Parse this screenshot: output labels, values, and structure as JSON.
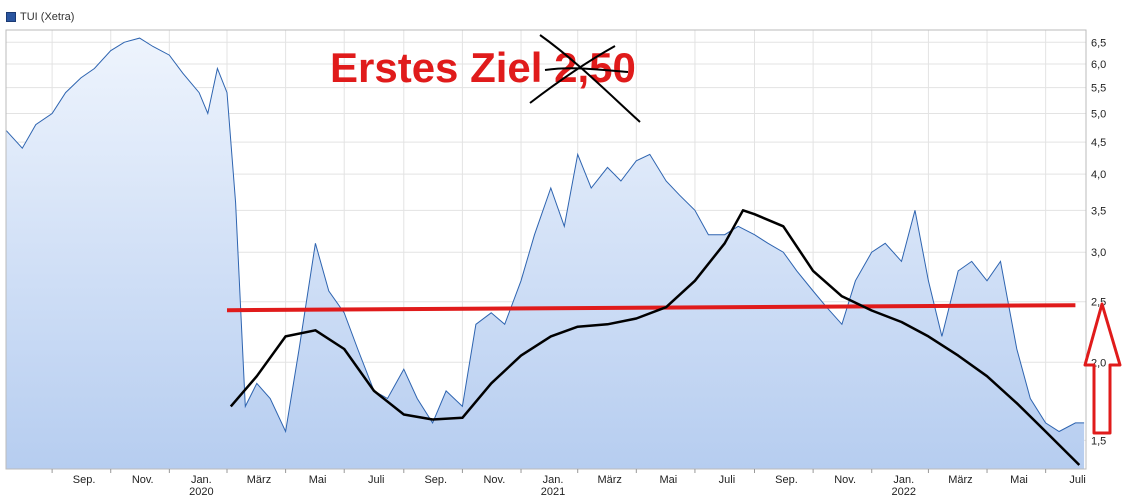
{
  "chart_data": {
    "type": "area",
    "title": "",
    "legend": "TUI (Xetra)",
    "xlabel": "",
    "ylabel": "",
    "y_scale": "log",
    "ylim": [
      1.35,
      6.8
    ],
    "y_ticks": [
      1.5,
      2.0,
      2.5,
      3.0,
      3.5,
      4.0,
      4.5,
      5.0,
      5.5,
      6.0,
      6.5
    ],
    "y_tick_labels": [
      "1,5",
      "2,0",
      "2,5",
      "3,0",
      "3,5",
      "4,0",
      "4,5",
      "5,0",
      "5,5",
      "6,0",
      "6,5"
    ],
    "x_ticks": [
      {
        "date": "2019-09-01",
        "label": "Sep.",
        "year": ""
      },
      {
        "date": "2019-11-01",
        "label": "Nov.",
        "year": ""
      },
      {
        "date": "2020-01-01",
        "label": "Jan.",
        "year": "2020"
      },
      {
        "date": "2020-03-01",
        "label": "März",
        "year": ""
      },
      {
        "date": "2020-05-01",
        "label": "Mai",
        "year": ""
      },
      {
        "date": "2020-07-01",
        "label": "Juli",
        "year": ""
      },
      {
        "date": "2020-09-01",
        "label": "Sep.",
        "year": ""
      },
      {
        "date": "2020-11-01",
        "label": "Nov.",
        "year": ""
      },
      {
        "date": "2021-01-01",
        "label": "Jan.",
        "year": "2021"
      },
      {
        "date": "2021-03-01",
        "label": "März",
        "year": ""
      },
      {
        "date": "2021-05-01",
        "label": "Mai",
        "year": ""
      },
      {
        "date": "2021-07-01",
        "label": "Juli",
        "year": ""
      },
      {
        "date": "2021-09-01",
        "label": "Sep.",
        "year": ""
      },
      {
        "date": "2021-11-01",
        "label": "Nov.",
        "year": ""
      },
      {
        "date": "2022-01-01",
        "label": "Jan.",
        "year": "2022"
      },
      {
        "date": "2022-03-01",
        "label": "März",
        "year": ""
      },
      {
        "date": "2022-05-01",
        "label": "Mai",
        "year": ""
      },
      {
        "date": "2022-07-01",
        "label": "Juli",
        "year": ""
      }
    ],
    "grid": true,
    "series": [
      {
        "name": "TUI (Xetra)",
        "color": "#2e64b0",
        "fill_top": "#eef4fd",
        "fill_bottom": "#b6cdf0",
        "x": [
          "2019-07-15",
          "2019-08-01",
          "2019-08-15",
          "2019-09-01",
          "2019-09-15",
          "2019-10-01",
          "2019-10-15",
          "2019-11-01",
          "2019-11-15",
          "2019-12-01",
          "2019-12-15",
          "2020-01-01",
          "2020-01-15",
          "2020-02-01",
          "2020-02-10",
          "2020-02-20",
          "2020-03-01",
          "2020-03-10",
          "2020-03-20",
          "2020-04-01",
          "2020-04-15",
          "2020-05-01",
          "2020-05-15",
          "2020-06-01",
          "2020-06-15",
          "2020-07-01",
          "2020-07-15",
          "2020-08-01",
          "2020-08-15",
          "2020-09-01",
          "2020-09-15",
          "2020-10-01",
          "2020-10-15",
          "2020-11-01",
          "2020-11-15",
          "2020-12-01",
          "2020-12-15",
          "2021-01-01",
          "2021-01-15",
          "2021-02-01",
          "2021-02-15",
          "2021-03-01",
          "2021-03-15",
          "2021-04-01",
          "2021-04-15",
          "2021-05-01",
          "2021-05-15",
          "2021-06-01",
          "2021-06-15",
          "2021-07-01",
          "2021-07-15",
          "2021-08-01",
          "2021-08-15",
          "2021-09-01",
          "2021-09-15",
          "2021-10-01",
          "2021-10-15",
          "2021-11-01",
          "2021-11-15",
          "2021-12-01",
          "2021-12-15",
          "2022-01-01",
          "2022-01-15",
          "2022-02-01",
          "2022-02-15",
          "2022-03-01",
          "2022-03-15",
          "2022-04-01",
          "2022-04-15",
          "2022-05-01",
          "2022-05-15",
          "2022-06-01",
          "2022-06-15",
          "2022-07-01",
          "2022-07-15",
          "2022-08-01",
          "2022-08-10"
        ],
        "y": [
          4.7,
          4.4,
          4.8,
          5.0,
          5.4,
          5.7,
          5.9,
          6.3,
          6.5,
          6.6,
          6.4,
          6.2,
          5.8,
          5.4,
          5.0,
          5.9,
          5.4,
          3.6,
          1.7,
          1.85,
          1.75,
          1.55,
          2.1,
          3.1,
          2.6,
          2.4,
          2.1,
          1.8,
          1.75,
          1.95,
          1.75,
          1.6,
          1.8,
          1.7,
          2.3,
          2.4,
          2.3,
          2.7,
          3.2,
          3.8,
          3.3,
          4.3,
          3.8,
          4.1,
          3.9,
          4.2,
          4.3,
          3.9,
          3.7,
          3.5,
          3.2,
          3.2,
          3.3,
          3.2,
          3.1,
          3.0,
          2.8,
          2.6,
          2.45,
          2.3,
          2.7,
          3.0,
          3.1,
          2.9,
          3.5,
          2.7,
          2.2,
          2.8,
          2.9,
          2.7,
          2.9,
          2.1,
          1.75,
          1.6,
          1.55,
          1.6,
          1.6
        ]
      }
    ],
    "annotations": [
      {
        "text": "Erstes Ziel 2,50",
        "color": "#e01b1b",
        "note_marks": "crossed-out"
      },
      {
        "type": "horizontal-line",
        "value": 2.45,
        "from": "2020-03-01",
        "to": "2022-08-01",
        "color": "#e01b1b"
      },
      {
        "type": "trend-curve",
        "color": "#000000",
        "x": [
          "2020-03-05",
          "2020-04-01",
          "2020-05-01",
          "2020-06-01",
          "2020-07-01",
          "2020-08-01",
          "2020-09-01",
          "2020-10-01",
          "2020-11-01",
          "2020-12-01",
          "2021-01-01",
          "2021-02-01",
          "2021-03-01",
          "2021-04-01",
          "2021-05-01",
          "2021-06-01",
          "2021-07-01",
          "2021-08-01",
          "2021-08-20",
          "2021-09-01",
          "2021-10-01",
          "2021-11-01",
          "2021-12-01",
          "2022-01-01",
          "2022-02-01",
          "2022-03-01",
          "2022-04-01",
          "2022-05-01",
          "2022-06-01",
          "2022-07-01",
          "2022-08-05"
        ],
        "y": [
          1.7,
          1.9,
          2.2,
          2.25,
          2.1,
          1.8,
          1.65,
          1.62,
          1.63,
          1.85,
          2.05,
          2.2,
          2.28,
          2.3,
          2.35,
          2.45,
          2.7,
          3.1,
          3.5,
          3.45,
          3.3,
          2.8,
          2.55,
          2.42,
          2.32,
          2.2,
          2.05,
          1.9,
          1.72,
          1.55,
          1.37
        ]
      },
      {
        "type": "arrow-up",
        "color": "#e01b1b",
        "target_value": 2.5
      }
    ]
  }
}
